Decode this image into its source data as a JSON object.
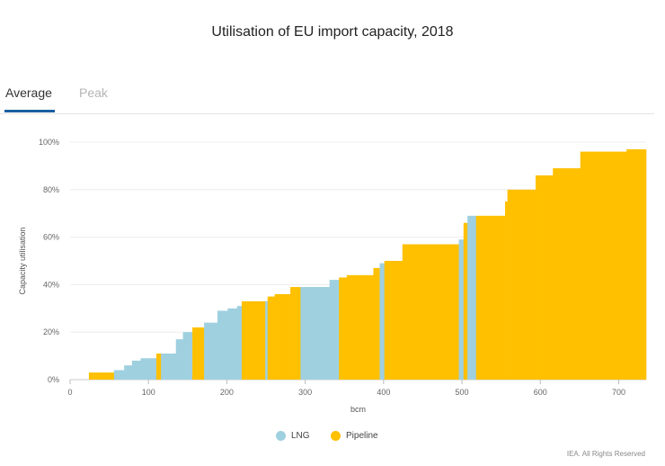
{
  "header": {
    "title": "Utilisation of EU import capacity, 2018"
  },
  "tabs": [
    {
      "label": "Average",
      "active": true
    },
    {
      "label": "Peak",
      "active": false
    }
  ],
  "colors": {
    "LNG": "#9fd0e0",
    "Pipeline": "#ffc000",
    "tab_underline": "#1a5fa0"
  },
  "footer": {
    "credit": "IEA. All Rights Reserved"
  },
  "chart_data": {
    "type": "bar",
    "subtype": "variable-width step bars (width = capacity in bcm, height = utilisation)",
    "title": "Utilisation of EU import capacity, 2018",
    "xlabel": "bcm",
    "ylabel": "Capacity utilisation",
    "xlim": [
      0,
      735
    ],
    "ylim": [
      0,
      100
    ],
    "xticks": [
      0,
      100,
      200,
      300,
      400,
      500,
      600,
      700
    ],
    "yticks": [
      0,
      20,
      40,
      60,
      80,
      100
    ],
    "ytick_labels": [
      "0%",
      "20%",
      "40%",
      "60%",
      "80%",
      "100%"
    ],
    "grid": true,
    "legend_position": "bottom-center",
    "series": [
      {
        "name": "LNG"
      },
      {
        "name": "Pipeline"
      }
    ],
    "segments": [
      {
        "type": "Pipeline",
        "x0": 24,
        "x1": 56,
        "y": 3
      },
      {
        "type": "LNG",
        "x0": 56,
        "x1": 69,
        "y": 4
      },
      {
        "type": "LNG",
        "x0": 69,
        "x1": 79,
        "y": 6
      },
      {
        "type": "LNG",
        "x0": 79,
        "x1": 90,
        "y": 8
      },
      {
        "type": "LNG",
        "x0": 90,
        "x1": 110,
        "y": 9
      },
      {
        "type": "Pipeline",
        "x0": 110,
        "x1": 116,
        "y": 11
      },
      {
        "type": "LNG",
        "x0": 116,
        "x1": 135,
        "y": 11
      },
      {
        "type": "LNG",
        "x0": 135,
        "x1": 144,
        "y": 17
      },
      {
        "type": "LNG",
        "x0": 144,
        "x1": 156,
        "y": 20
      },
      {
        "type": "Pipeline",
        "x0": 156,
        "x1": 171,
        "y": 22
      },
      {
        "type": "LNG",
        "x0": 171,
        "x1": 188,
        "y": 24
      },
      {
        "type": "LNG",
        "x0": 188,
        "x1": 201,
        "y": 29
      },
      {
        "type": "LNG",
        "x0": 201,
        "x1": 213,
        "y": 30
      },
      {
        "type": "LNG",
        "x0": 213,
        "x1": 219,
        "y": 31
      },
      {
        "type": "Pipeline",
        "x0": 219,
        "x1": 249,
        "y": 33
      },
      {
        "type": "LNG",
        "x0": 249,
        "x1": 252,
        "y": 33
      },
      {
        "type": "Pipeline",
        "x0": 252,
        "x1": 261,
        "y": 35
      },
      {
        "type": "Pipeline",
        "x0": 261,
        "x1": 281,
        "y": 36
      },
      {
        "type": "Pipeline",
        "x0": 281,
        "x1": 294,
        "y": 39
      },
      {
        "type": "LNG",
        "x0": 294,
        "x1": 331,
        "y": 39
      },
      {
        "type": "LNG",
        "x0": 331,
        "x1": 343,
        "y": 42
      },
      {
        "type": "Pipeline",
        "x0": 343,
        "x1": 353,
        "y": 43
      },
      {
        "type": "Pipeline",
        "x0": 353,
        "x1": 387,
        "y": 44
      },
      {
        "type": "Pipeline",
        "x0": 387,
        "x1": 395,
        "y": 47
      },
      {
        "type": "LNG",
        "x0": 395,
        "x1": 401,
        "y": 49
      },
      {
        "type": "Pipeline",
        "x0": 401,
        "x1": 424,
        "y": 50
      },
      {
        "type": "Pipeline",
        "x0": 424,
        "x1": 496,
        "y": 57
      },
      {
        "type": "LNG",
        "x0": 496,
        "x1": 502,
        "y": 59
      },
      {
        "type": "Pipeline",
        "x0": 502,
        "x1": 507,
        "y": 66
      },
      {
        "type": "LNG",
        "x0": 507,
        "x1": 518,
        "y": 69
      },
      {
        "type": "Pipeline",
        "x0": 518,
        "x1": 555,
        "y": 69
      },
      {
        "type": "Pipeline",
        "x0": 555,
        "x1": 558,
        "y": 75
      },
      {
        "type": "Pipeline",
        "x0": 558,
        "x1": 594,
        "y": 80
      },
      {
        "type": "Pipeline",
        "x0": 594,
        "x1": 616,
        "y": 86
      },
      {
        "type": "Pipeline",
        "x0": 616,
        "x1": 651,
        "y": 89
      },
      {
        "type": "Pipeline",
        "x0": 651,
        "x1": 710,
        "y": 96
      },
      {
        "type": "Pipeline",
        "x0": 710,
        "x1": 735,
        "y": 97
      }
    ]
  }
}
